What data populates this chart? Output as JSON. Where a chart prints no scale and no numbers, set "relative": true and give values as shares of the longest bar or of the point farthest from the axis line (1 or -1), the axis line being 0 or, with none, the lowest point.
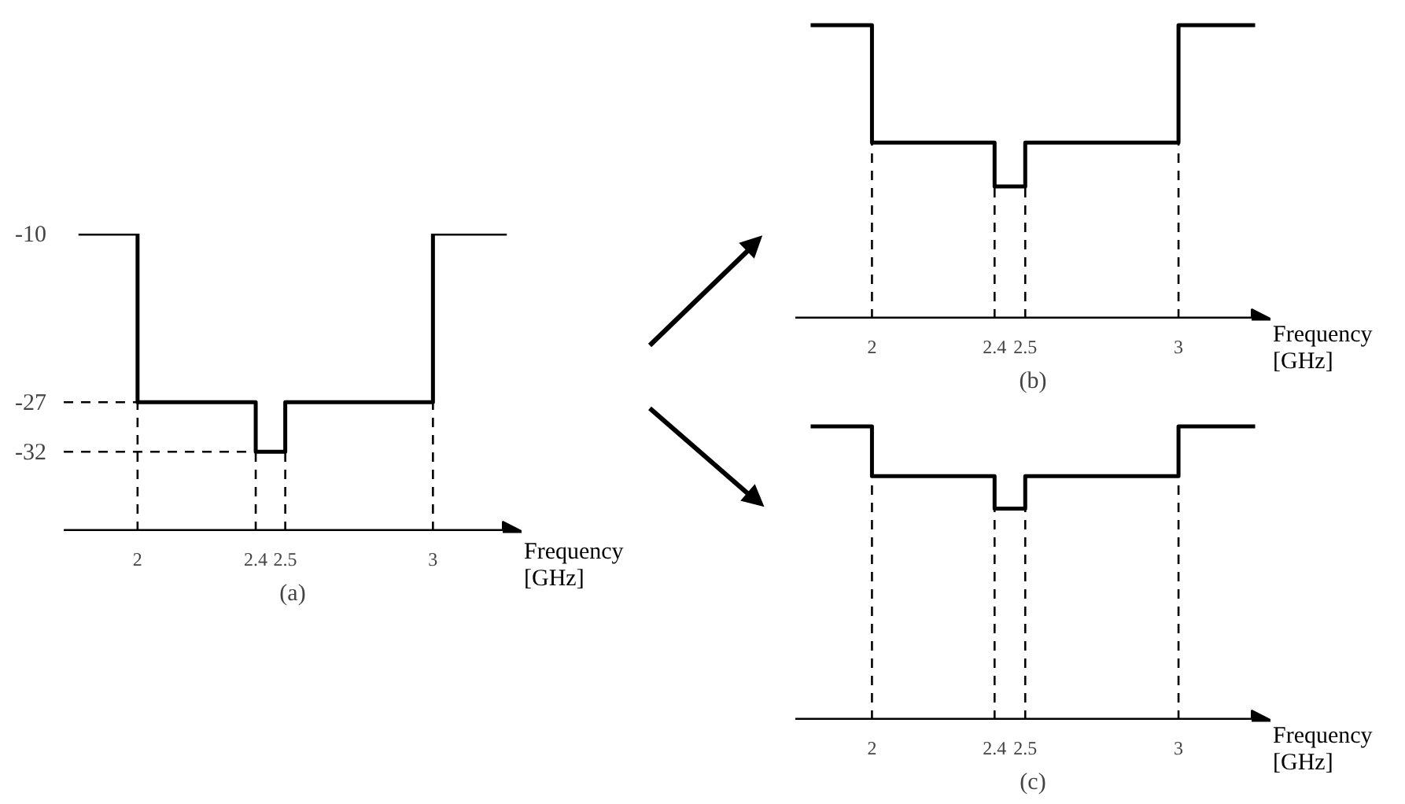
{
  "chart_data": [
    {
      "type": "step",
      "title": "(a)",
      "xlabel": "Frequency [GHz]",
      "x": [
        1.8,
        2,
        2.4,
        2.5,
        3,
        3.25
      ],
      "xlim": [
        1.75,
        3.3
      ],
      "xticks": [
        2,
        2.4,
        2.5,
        3
      ],
      "ylim": [
        -40,
        -10
      ],
      "yticks": [
        -10,
        -27,
        -32
      ],
      "series": [
        {
          "color": "#000000",
          "values": [
            -10,
            -27,
            -32,
            -27,
            -10,
            -10
          ]
        }
      ],
      "ref_lines": [
        {
          "axis": "x",
          "value": 2,
          "line_style": "dashed"
        },
        {
          "axis": "x",
          "value": 2.4,
          "line_style": "dashed"
        },
        {
          "axis": "x",
          "value": 2.5,
          "line_style": "dashed"
        },
        {
          "axis": "x",
          "value": 3,
          "line_style": "dashed"
        },
        {
          "axis": "y",
          "value": -27,
          "line_style": "dashed"
        },
        {
          "axis": "y",
          "value": -32,
          "line_style": "dashed"
        }
      ]
    },
    {
      "type": "step",
      "title": "(b)",
      "xlabel": "Frequency [GHz]",
      "x": [
        1.8,
        2,
        2.4,
        2.5,
        3,
        3.25
      ],
      "xlim": [
        1.75,
        3.3
      ],
      "xticks": [
        2,
        2.4,
        2.5,
        3
      ],
      "relative": true,
      "tick_labels": "x",
      "series": [
        {
          "color": "#000000",
          "values": [
            1,
            0.6,
            0.45,
            0.6,
            1,
            1
          ]
        }
      ],
      "ref_lines": [
        {
          "axis": "x",
          "value": 2,
          "line_style": "dashed"
        },
        {
          "axis": "x",
          "value": 2.4,
          "line_style": "dashed"
        },
        {
          "axis": "x",
          "value": 2.5,
          "line_style": "dashed"
        },
        {
          "axis": "x",
          "value": 3,
          "line_style": "dashed"
        }
      ]
    },
    {
      "type": "step",
      "title": "(c)",
      "xlabel": "Frequency [GHz]",
      "x": [
        1.8,
        2,
        2.4,
        2.5,
        3,
        3.25
      ],
      "xlim": [
        1.75,
        3.3
      ],
      "xticks": [
        2,
        2.4,
        2.5,
        3
      ],
      "relative": true,
      "tick_labels": "x",
      "series": [
        {
          "color": "#000000",
          "values": [
            1,
            0.83,
            0.72,
            0.83,
            1,
            1
          ]
        }
      ],
      "ref_lines": [
        {
          "axis": "x",
          "value": 2,
          "line_style": "dashed"
        },
        {
          "axis": "x",
          "value": 2.4,
          "line_style": "dashed"
        },
        {
          "axis": "x",
          "value": 2.5,
          "line_style": "dashed"
        },
        {
          "axis": "x",
          "value": 3,
          "line_style": "dashed"
        }
      ]
    }
  ]
}
